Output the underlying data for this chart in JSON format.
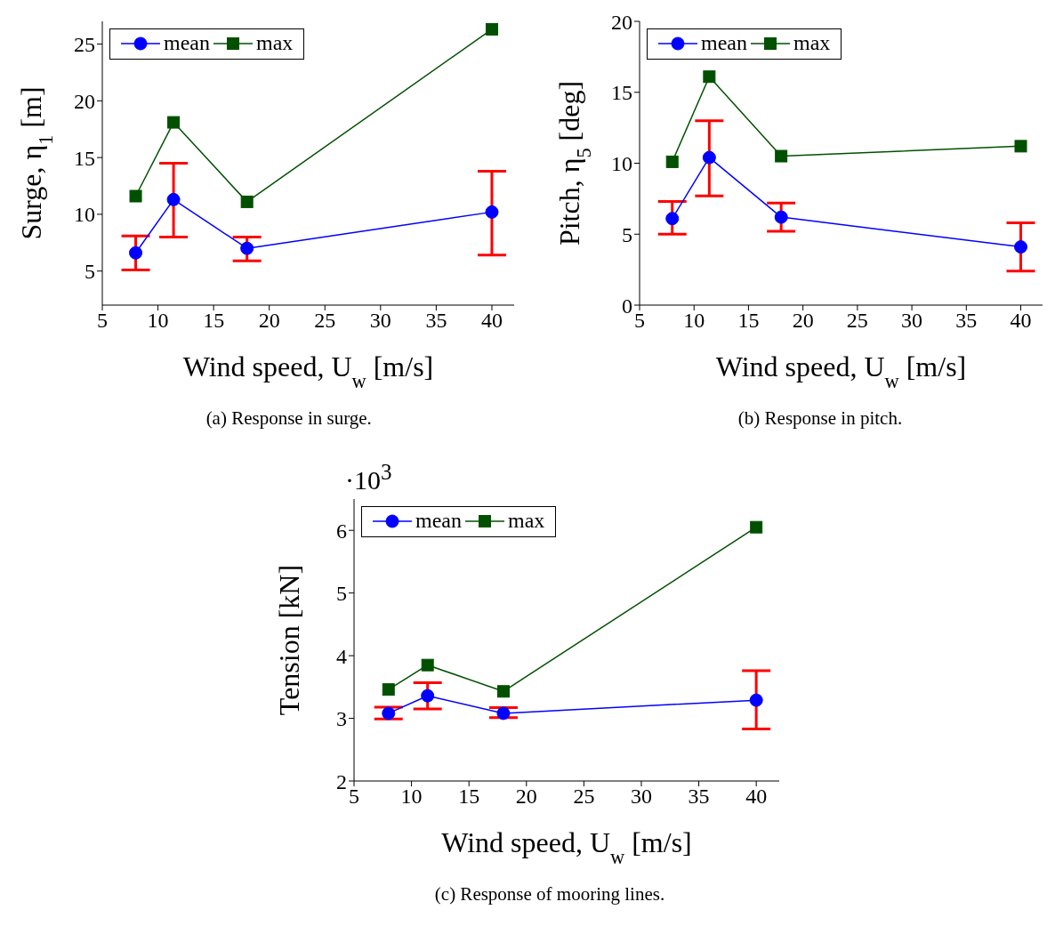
{
  "chart_data": [
    {
      "type": "line",
      "xlabel": "Wind speed, U$_{w}$ [m/s]",
      "ylabel": "Surge, η$_{1}$ [m]",
      "annotations": [
        "(a) Response in surge."
      ],
      "x": [
        8,
        11.4,
        18,
        40
      ],
      "xlim": [
        5,
        42
      ],
      "xticks": [
        5,
        10,
        15,
        20,
        25,
        30,
        35,
        40
      ],
      "ylim": [
        2,
        27
      ],
      "yticks": [
        5,
        10,
        15,
        20,
        25
      ],
      "legend": "top left",
      "series": [
        {
          "name": "mean",
          "color": "#0000ff",
          "marker": "circle",
          "values": [
            6.6,
            11.3,
            7.0,
            10.2
          ],
          "errors": [
            [
              5.1,
              8.1
            ],
            [
              8.0,
              14.5
            ],
            [
              5.9,
              8.0
            ],
            [
              6.4,
              13.8
            ]
          ]
        },
        {
          "name": "max",
          "color": "#005000",
          "marker": "square",
          "values": [
            11.6,
            18.1,
            11.1,
            26.3
          ]
        }
      ]
    },
    {
      "type": "line",
      "xlabel": "Wind speed, U$_{w}$ [m/s]",
      "ylabel": "Pitch, η$_{5}$ [deg]",
      "annotations": [
        "(b) Response in pitch."
      ],
      "x": [
        8,
        11.4,
        18,
        40
      ],
      "xlim": [
        5,
        42
      ],
      "xticks": [
        5,
        10,
        15,
        20,
        25,
        30,
        35,
        40
      ],
      "ylim": [
        0,
        20
      ],
      "yticks": [
        0,
        5,
        10,
        15,
        20
      ],
      "legend": "top left",
      "series": [
        {
          "name": "mean",
          "color": "#0000ff",
          "marker": "circle",
          "values": [
            6.1,
            10.4,
            6.2,
            4.1
          ],
          "errors": [
            [
              5.0,
              7.3
            ],
            [
              7.7,
              13.0
            ],
            [
              5.2,
              7.2
            ],
            [
              2.4,
              5.8
            ]
          ]
        },
        {
          "name": "max",
          "color": "#005000",
          "marker": "square",
          "values": [
            10.1,
            16.1,
            10.5,
            11.2
          ]
        }
      ]
    },
    {
      "type": "line",
      "xlabel": "Wind speed, U$_{w}$ [m/s]",
      "ylabel": "Tension [kN]",
      "annotations": [
        "·10$^{3}$",
        "(c) Response of mooring lines."
      ],
      "x": [
        8,
        11.4,
        18,
        40
      ],
      "xlim": [
        5,
        42
      ],
      "xticks": [
        5,
        10,
        15,
        20,
        25,
        30,
        35,
        40
      ],
      "ylim": [
        2,
        6.5
      ],
      "yticks": [
        2,
        3,
        4,
        5,
        6
      ],
      "legend": "top left",
      "series": [
        {
          "name": "mean",
          "color": "#0000ff",
          "marker": "circle",
          "values": [
            3.08,
            3.36,
            3.08,
            3.29
          ],
          "errors": [
            [
              2.99,
              3.18
            ],
            [
              3.15,
              3.57
            ],
            [
              3.01,
              3.17
            ],
            [
              2.83,
              3.76
            ]
          ]
        },
        {
          "name": "max",
          "color": "#005000",
          "marker": "square",
          "values": [
            3.46,
            3.85,
            3.43,
            6.05
          ]
        }
      ]
    }
  ]
}
